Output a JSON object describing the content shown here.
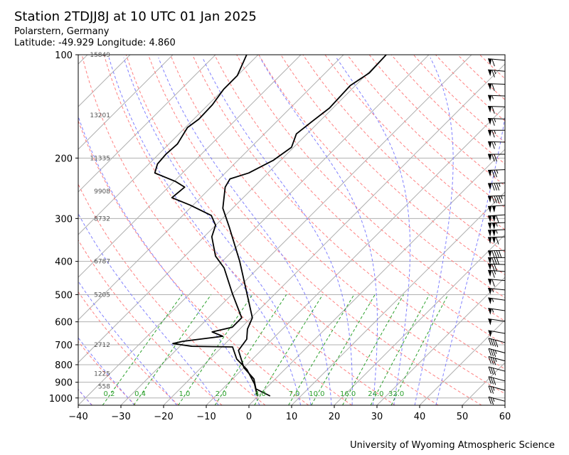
{
  "header": {
    "title": "Station 2TDJJ8J at 10 UTC 01 Jan 2025",
    "location": "Polarstern, Germany",
    "coords": "Latitude: -49.929 Longitude: 4.860"
  },
  "footer": "University of Wyoming Atmospheric Science",
  "colors": {
    "isotherm": "#b0b0b0",
    "dry_adiabat": "#ff8080",
    "moist_adiabat": "#8080ff",
    "mixing_ratio": "#2ca02c",
    "profile": "#000000"
  },
  "chart_data": {
    "type": "line",
    "subtype": "skew-t log-p",
    "xlabel": "Temperature (°C)",
    "ylabel": "Pressure (hPa)",
    "xlim": [
      -40,
      60
    ],
    "ylim": [
      1050,
      100
    ],
    "xticks": [
      "-40",
      "-30",
      "-20",
      "-10",
      "0",
      "10",
      "20",
      "30",
      "40",
      "50",
      "60"
    ],
    "yticks": [
      "100",
      "200",
      "300",
      "400",
      "500",
      "600",
      "700",
      "800",
      "900",
      "1000"
    ],
    "grid": true,
    "temperature": {
      "pressure": [
        987,
        941,
        880,
        816,
        727,
        674,
        630,
        584,
        490,
        399,
        319,
        280,
        243,
        230,
        221,
        203,
        186,
        170,
        156,
        143,
        123,
        113,
        100
      ],
      "values": [
        2.8,
        -2.2,
        -5,
        -10,
        -15.3,
        -16,
        -18.2,
        -19.7,
        -27.2,
        -36,
        -46.2,
        -52.3,
        -56.7,
        -57.5,
        -54.5,
        -51.7,
        -50.5,
        -52.5,
        -51.7,
        -50.8,
        -51.2,
        -49.7,
        -50
      ]
    },
    "dewpoint": {
      "pressure": [
        987,
        910,
        827,
        770,
        710,
        707,
        694,
        684,
        661,
        642,
        622,
        584,
        497,
        418,
        386,
        339,
        314,
        294,
        274,
        261,
        243,
        234,
        221,
        208,
        195,
        182,
        163,
        154,
        140,
        126,
        115,
        100
      ],
      "values": [
        -0.2,
        -3.7,
        -8.8,
        -13.7,
        -17.5,
        -27.2,
        -32.3,
        -30.5,
        -22.3,
        -25.8,
        -22.2,
        -22.2,
        -30,
        -38,
        -42.8,
        -48.2,
        -50,
        -53.3,
        -60.8,
        -66.7,
        -66.2,
        -69.7,
        -76.5,
        -78,
        -78.3,
        -78,
        -79.5,
        -78.8,
        -79,
        -80,
        -80,
        -82.7
      ]
    },
    "heights": [
      {
        "pressure": 100,
        "label": "15849"
      },
      {
        "pressure": 150,
        "label": "13201"
      },
      {
        "pressure": 200,
        "label": "11335"
      },
      {
        "pressure": 250,
        "label": "9908"
      },
      {
        "pressure": 300,
        "label": "8732"
      },
      {
        "pressure": 400,
        "label": "6787"
      },
      {
        "pressure": 500,
        "label": "5205"
      },
      {
        "pressure": 700,
        "label": "2712"
      },
      {
        "pressure": 850,
        "label": "1225"
      },
      {
        "pressure": 925,
        "label": "558"
      }
    ],
    "mixing_ratios": {
      "values": [
        0.2,
        0.4,
        1.0,
        2.0,
        4.0,
        7.0,
        10.0,
        16.0,
        24.0,
        32.0
      ],
      "labels": [
        "0.2",
        "0.4",
        "1.0",
        "2.0",
        "4.0",
        "7.0",
        "10.0",
        "16.0",
        "24.0",
        "32.0"
      ]
    },
    "dry_adiabats_degC_at_1000": [
      -40,
      -30,
      -20,
      -10,
      0,
      10,
      20,
      30,
      40,
      50,
      60,
      70,
      80,
      90,
      100,
      110,
      120,
      130,
      140,
      150,
      160,
      170,
      180,
      190,
      200
    ],
    "moist_adiabats_degC_at_1000": [
      -50,
      -40,
      -30,
      -20,
      -10,
      0,
      10,
      12.5,
      17.5,
      22.5,
      27.5,
      32.5,
      37.5,
      42.5
    ],
    "wind": {
      "pressure": [
        104,
        112,
        122,
        132,
        142,
        154,
        166,
        180,
        195,
        216,
        236,
        257,
        274,
        292,
        308,
        323,
        339,
        371,
        390,
        409,
        429,
        456,
        486,
        521,
        559,
        600,
        652,
        695,
        745,
        786,
        842,
        899,
        957,
        1030
      ],
      "speed_kt": [
        60,
        65,
        60,
        55,
        60,
        65,
        65,
        65,
        70,
        75,
        85,
        95,
        100,
        110,
        105,
        105,
        110,
        90,
        80,
        70,
        65,
        60,
        55,
        55,
        55,
        50,
        50,
        40,
        35,
        35,
        30,
        30,
        25,
        25
      ],
      "direction_deg": [
        275,
        275,
        272,
        272,
        272,
        272,
        270,
        272,
        270,
        268,
        268,
        268,
        266,
        266,
        268,
        268,
        268,
        268,
        270,
        272,
        274,
        275,
        276,
        278,
        278,
        278,
        280,
        285,
        285,
        285,
        285,
        285,
        285,
        285
      ]
    }
  }
}
